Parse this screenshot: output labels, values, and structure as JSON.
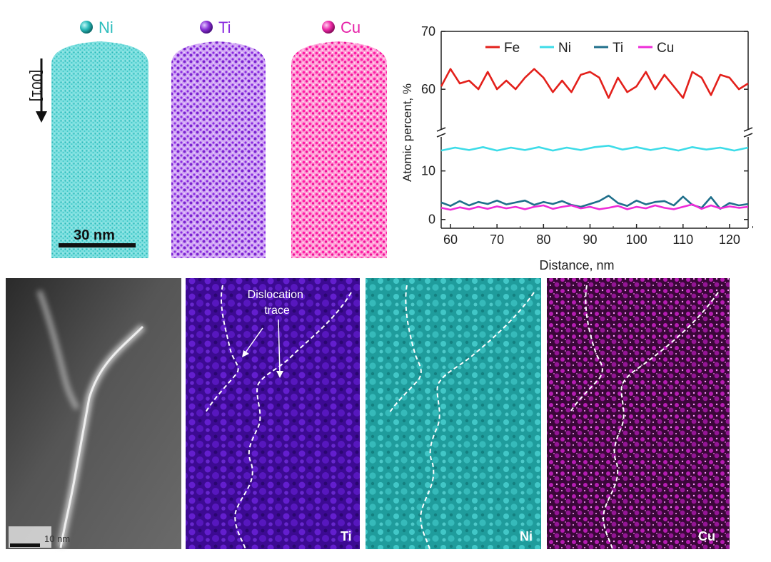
{
  "atom_probe": {
    "maps": [
      {
        "element": "Ni",
        "color": "#35c9c9",
        "legend_icon": "cyan-sphere-icon"
      },
      {
        "element": "Ti",
        "color": "#9a3be0",
        "legend_icon": "purple-sphere-icon"
      },
      {
        "element": "Cu",
        "color": "#ff2fb4",
        "legend_icon": "magenta-sphere-icon"
      }
    ],
    "direction_label": "[001]",
    "scale_bar_label": "30 nm"
  },
  "chart_data": {
    "type": "line",
    "ylabel": "Atomic percent, %",
    "xlabel": "Distance, nm",
    "xlim": [
      58,
      124
    ],
    "x_ticks": [
      60,
      70,
      80,
      90,
      100,
      110,
      120
    ],
    "y_ticks_upper": [
      60,
      70
    ],
    "y_ticks_lower": [
      0,
      10
    ],
    "broken_y_axis": true,
    "legend_placement": "top",
    "series": [
      {
        "name": "Fe",
        "color": "#e3201b",
        "x": [
          58,
          60,
          62,
          64,
          66,
          68,
          70,
          72,
          74,
          76,
          78,
          80,
          82,
          84,
          86,
          88,
          90,
          92,
          94,
          96,
          98,
          100,
          102,
          104,
          106,
          108,
          110,
          112,
          114,
          116,
          118,
          120,
          122,
          124
        ],
        "y": [
          60.5,
          63.5,
          61,
          61.5,
          60,
          63,
          60,
          61.5,
          60,
          62,
          63.5,
          62,
          59.5,
          61.5,
          59.5,
          62.5,
          63,
          62,
          58.5,
          62,
          59.5,
          60.5,
          63,
          60,
          62.5,
          60.5,
          58.5,
          63,
          62,
          59,
          62.5,
          62,
          60,
          61
        ]
      },
      {
        "name": "Ni",
        "color": "#3ddce8",
        "x": [
          58,
          61,
          64,
          67,
          70,
          73,
          76,
          79,
          82,
          85,
          88,
          91,
          94,
          97,
          100,
          103,
          106,
          109,
          112,
          115,
          118,
          121,
          124
        ],
        "y": [
          14.2,
          14.8,
          14.3,
          14.9,
          14.2,
          14.8,
          14.3,
          14.9,
          14.2,
          14.8,
          14.3,
          14.9,
          15.2,
          14.4,
          14.9,
          14.3,
          14.8,
          14.2,
          14.9,
          14.4,
          14.8,
          14.2,
          14.8
        ]
      },
      {
        "name": "Ti",
        "color": "#1f6f8b",
        "x": [
          58,
          60,
          62,
          64,
          66,
          68,
          70,
          72,
          74,
          76,
          78,
          80,
          82,
          84,
          86,
          88,
          90,
          92,
          94,
          96,
          98,
          100,
          102,
          104,
          106,
          108,
          110,
          112,
          114,
          116,
          118,
          120,
          122,
          124
        ],
        "y": [
          3.5,
          2.8,
          3.8,
          2.9,
          3.6,
          3.2,
          3.9,
          3.1,
          3.5,
          3.9,
          3.0,
          3.6,
          3.2,
          3.8,
          3.0,
          2.6,
          3.2,
          3.8,
          4.9,
          3.4,
          2.8,
          3.9,
          3.1,
          3.6,
          3.8,
          2.9,
          4.7,
          3.0,
          2.4,
          4.6,
          2.2,
          3.4,
          2.9,
          3.2
        ]
      },
      {
        "name": "Cu",
        "color": "#ee2bd8",
        "x": [
          58,
          60,
          62,
          64,
          66,
          68,
          70,
          72,
          74,
          76,
          78,
          80,
          82,
          84,
          86,
          88,
          90,
          92,
          94,
          96,
          98,
          100,
          102,
          104,
          106,
          108,
          110,
          112,
          114,
          116,
          118,
          120,
          122,
          124
        ],
        "y": [
          2.4,
          2.0,
          2.5,
          2.1,
          2.6,
          2.2,
          2.7,
          2.3,
          2.6,
          2.1,
          2.6,
          2.9,
          2.2,
          2.6,
          2.9,
          2.3,
          2.6,
          2.1,
          2.4,
          2.8,
          2.1,
          2.6,
          2.3,
          2.9,
          2.4,
          2.1,
          2.6,
          3.1,
          2.2,
          2.9,
          2.3,
          2.7,
          2.4,
          2.6
        ]
      }
    ]
  },
  "tem": {
    "scale_bar_label": "10 nm",
    "annotation": "Dislocation\ntrace",
    "maps": [
      {
        "element": "Ti",
        "color": "#4a0fa8"
      },
      {
        "element": "Ni",
        "color": "#2bb0b0"
      },
      {
        "element": "Cu",
        "color": "#7a0c78"
      }
    ]
  }
}
